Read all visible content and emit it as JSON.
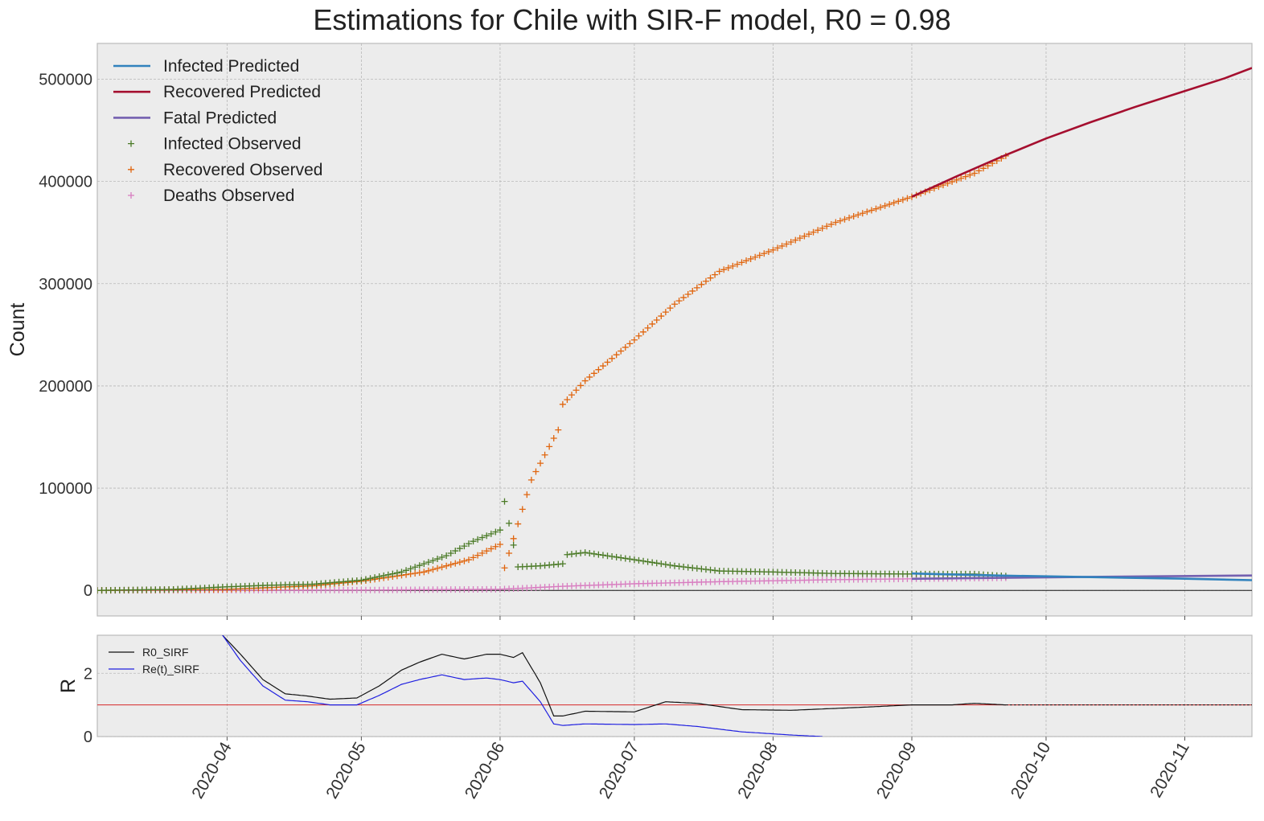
{
  "chart_data": [
    {
      "type": "line",
      "title": "Estimations for Chile with SIR-F model, R0 = 0.98",
      "xlabel": "",
      "ylabel": "Count",
      "xlim": [
        "2020-03-03",
        "2020-11-16"
      ],
      "ylim": [
        -25000,
        535000
      ],
      "yticks": [
        0,
        100000,
        200000,
        300000,
        400000,
        500000
      ],
      "ytick_labels": [
        "0",
        "100000",
        "200000",
        "300000",
        "400000",
        "500000"
      ],
      "grid": true,
      "legend_position": "top-left",
      "legend": [
        "Infected Predicted",
        "Recovered Predicted",
        "Fatal Predicted",
        "Infected Observed",
        "Recovered Observed",
        "Deaths Observed"
      ],
      "colors": {
        "infected_predicted": "#3182bd",
        "recovered_predicted": "#a50f2f",
        "fatal_predicted": "#7460b0",
        "infected_observed": "#4a7a26",
        "recovered_observed": "#e0650e",
        "deaths_observed": "#d87cc0"
      },
      "series": [
        {
          "name": "Infected Predicted",
          "style": "line",
          "x": [
            "2020-09-01",
            "2020-09-21",
            "2020-10-11",
            "2020-10-31",
            "2020-11-16"
          ],
          "y": [
            16500,
            14500,
            13000,
            11500,
            10000
          ]
        },
        {
          "name": "Recovered Predicted",
          "style": "line",
          "x": [
            "2020-09-01",
            "2020-09-11",
            "2020-09-21",
            "2020-10-01",
            "2020-10-11",
            "2020-10-21",
            "2020-10-31",
            "2020-11-10",
            "2020-11-16"
          ],
          "y": [
            385000,
            405000,
            424000,
            442000,
            458000,
            473000,
            487000,
            501000,
            511000
          ]
        },
        {
          "name": "Fatal Predicted",
          "style": "line",
          "x": [
            "2020-09-01",
            "2020-09-21",
            "2020-10-11",
            "2020-10-31",
            "2020-11-16"
          ],
          "y": [
            11300,
            12300,
            13200,
            14000,
            14600
          ]
        },
        {
          "name": "Infected Observed",
          "style": "marker",
          "x": [
            "2020-03-03",
            "2020-03-20",
            "2020-04-01",
            "2020-04-10",
            "2020-04-20",
            "2020-05-01",
            "2020-05-10",
            "2020-05-20",
            "2020-05-26",
            "2020-06-01",
            "2020-06-02",
            "2020-06-05",
            "2020-06-10",
            "2020-06-15",
            "2020-06-16",
            "2020-06-20",
            "2020-07-01",
            "2020-07-10",
            "2020-07-20",
            "2020-08-01",
            "2020-08-15",
            "2020-09-01",
            "2020-09-15",
            "2020-09-22"
          ],
          "y": [
            0,
            1000,
            3500,
            5000,
            6000,
            10000,
            18000,
            34000,
            48000,
            59000,
            87000,
            23000,
            24000,
            26000,
            35000,
            37000,
            30000,
            24000,
            19000,
            18000,
            16500,
            16000,
            16000,
            14000
          ]
        },
        {
          "name": "Recovered Observed",
          "style": "marker",
          "x": [
            "2020-03-03",
            "2020-04-01",
            "2020-04-20",
            "2020-05-01",
            "2020-05-15",
            "2020-05-25",
            "2020-06-01",
            "2020-06-02",
            "2020-06-08",
            "2020-06-14",
            "2020-06-15",
            "2020-06-20",
            "2020-07-01",
            "2020-07-10",
            "2020-07-20",
            "2020-08-01",
            "2020-08-15",
            "2020-09-01",
            "2020-09-15",
            "2020-09-22"
          ],
          "y": [
            0,
            1000,
            4500,
            9000,
            18000,
            30000,
            45000,
            22000,
            108000,
            157000,
            182000,
            205000,
            245000,
            280000,
            312000,
            333000,
            360000,
            385000,
            408000,
            425000
          ]
        },
        {
          "name": "Deaths Observed",
          "style": "marker",
          "x": [
            "2020-03-03",
            "2020-05-01",
            "2020-06-01",
            "2020-06-15",
            "2020-07-01",
            "2020-07-20",
            "2020-08-15",
            "2020-09-01",
            "2020-09-22"
          ],
          "y": [
            0,
            300,
            1100,
            4000,
            6500,
            8500,
            10500,
            11300,
            12300
          ]
        }
      ]
    },
    {
      "type": "line",
      "title": "",
      "xlabel": "",
      "ylabel": "R",
      "xlim": [
        "2020-03-03",
        "2020-11-16"
      ],
      "ylim": [
        0,
        3.2
      ],
      "yticks": [
        0,
        2
      ],
      "ytick_labels": [
        "0",
        "2"
      ],
      "xticks": [
        "2020-04-01",
        "2020-05-01",
        "2020-06-01",
        "2020-07-01",
        "2020-08-01",
        "2020-09-01",
        "2020-10-01",
        "2020-11-01"
      ],
      "xtick_labels": [
        "2020-04",
        "2020-05",
        "2020-06",
        "2020-07",
        "2020-08",
        "2020-09",
        "2020-10",
        "2020-11"
      ],
      "grid": true,
      "legend_position": "top-left",
      "legend": [
        "R0_SIRF",
        "Re(t)_SIRF"
      ],
      "reference_line": {
        "y": 1,
        "color": "#d62728"
      },
      "colors": {
        "r0_sirf": "#111111",
        "re_sirf": "#1f1fe0"
      },
      "series": [
        {
          "name": "R0_SIRF",
          "style": "line",
          "x": [
            "2020-03-31",
            "2020-04-04",
            "2020-04-09",
            "2020-04-14",
            "2020-04-19",
            "2020-04-24",
            "2020-04-30",
            "2020-05-05",
            "2020-05-10",
            "2020-05-14",
            "2020-05-19",
            "2020-05-24",
            "2020-05-29",
            "2020-06-01",
            "2020-06-04",
            "2020-06-06",
            "2020-06-10",
            "2020-06-13",
            "2020-06-15",
            "2020-06-20",
            "2020-07-01",
            "2020-07-08",
            "2020-07-15",
            "2020-07-25",
            "2020-08-05",
            "2020-08-20",
            "2020-09-01",
            "2020-09-10",
            "2020-09-15",
            "2020-09-22"
          ],
          "y": [
            3.2,
            2.6,
            1.8,
            1.35,
            1.28,
            1.18,
            1.22,
            1.6,
            2.1,
            2.35,
            2.6,
            2.45,
            2.6,
            2.6,
            2.5,
            2.65,
            1.7,
            0.65,
            0.65,
            0.8,
            0.78,
            1.1,
            1.05,
            0.85,
            0.83,
            0.92,
            1.0,
            1.0,
            1.05,
            1.0
          ]
        },
        {
          "name": "Re(t)_SIRF",
          "style": "line",
          "x": [
            "2020-03-31",
            "2020-04-04",
            "2020-04-09",
            "2020-04-14",
            "2020-04-19",
            "2020-04-24",
            "2020-04-30",
            "2020-05-05",
            "2020-05-10",
            "2020-05-14",
            "2020-05-19",
            "2020-05-24",
            "2020-05-29",
            "2020-06-01",
            "2020-06-04",
            "2020-06-06",
            "2020-06-10",
            "2020-06-13",
            "2020-06-15",
            "2020-06-20",
            "2020-07-01",
            "2020-07-08",
            "2020-07-15",
            "2020-07-25",
            "2020-08-05",
            "2020-08-12"
          ],
          "y": [
            3.2,
            2.4,
            1.6,
            1.15,
            1.1,
            1.0,
            1.0,
            1.3,
            1.65,
            1.8,
            1.95,
            1.8,
            1.85,
            1.8,
            1.7,
            1.75,
            1.1,
            0.4,
            0.35,
            0.4,
            0.38,
            0.4,
            0.32,
            0.15,
            0.05,
            0.0
          ]
        }
      ]
    }
  ]
}
